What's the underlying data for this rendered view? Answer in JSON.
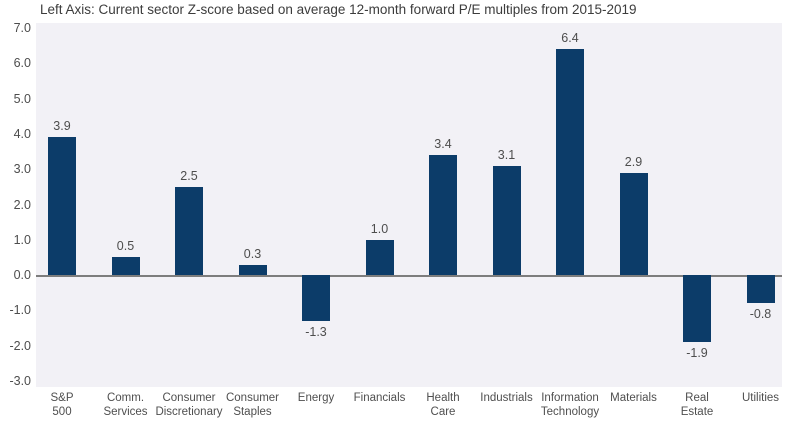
{
  "title": "Left Axis: Current sector Z-score based on average 12-month forward P/E multiples from 2015-2019",
  "colors": {
    "bar": "#0c3c69",
    "plot_background": "#f2f1f6",
    "zero_line": "#7d7d7d",
    "title_text": "#3c3c3c",
    "axis_text": "#4d4d4d",
    "value_text": "#4d4d4d"
  },
  "chart_data": {
    "type": "bar",
    "title": "Left Axis: Current sector Z-score based on average 12-month forward P/E multiples from 2015-2019",
    "categories": [
      "S&P 500",
      "Comm. Services",
      "Consumer Discretionary",
      "Consumer Staples",
      "Energy",
      "Financials",
      "Health Care",
      "Industrials",
      "Information Technology",
      "Materials",
      "Real Estate",
      "Utilities"
    ],
    "category_lines": [
      [
        "S&P",
        "500"
      ],
      [
        "Comm.",
        "Services"
      ],
      [
        "Consumer",
        "Discretionary"
      ],
      [
        "Consumer",
        "Staples"
      ],
      [
        "Energy"
      ],
      [
        "Financials"
      ],
      [
        "Health",
        "Care"
      ],
      [
        "Industrials"
      ],
      [
        "Information",
        "Technology"
      ],
      [
        "Materials"
      ],
      [
        "Real",
        "Estate"
      ],
      [
        "Utilities"
      ]
    ],
    "values": [
      3.9,
      0.5,
      2.5,
      0.3,
      -1.3,
      1.0,
      3.4,
      3.1,
      6.4,
      2.9,
      -1.9,
      -0.8
    ],
    "value_labels": [
      "3.9",
      "0.5",
      "2.5",
      "0.3",
      "-1.3",
      "1.0",
      "3.4",
      "3.1",
      "6.4",
      "2.9",
      "-1.9",
      "-0.8"
    ],
    "xlabel": "",
    "ylabel": "",
    "ylim": [
      -3.0,
      7.0
    ],
    "ytick_step": 1.0,
    "yticks": [
      "7.0",
      "6.0",
      "5.0",
      "4.0",
      "3.0",
      "2.0",
      "1.0",
      "0.0",
      "-1.0",
      "-2.0",
      "-3.0"
    ],
    "grid": false,
    "legend_position": "none",
    "bar_color": "#0c3c69"
  }
}
